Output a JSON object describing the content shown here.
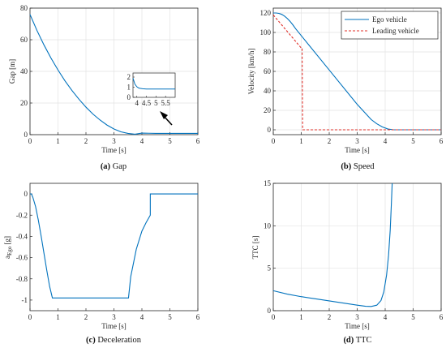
{
  "chart_data": [
    {
      "type": "line",
      "caption_letter": "(a)",
      "caption_text": " Gap",
      "xlabel": "Time [s]",
      "ylabel": "Gap [m]",
      "xlim": [
        0,
        6
      ],
      "ylim": [
        0,
        80
      ],
      "xticks": [
        0,
        1,
        2,
        3,
        4,
        5,
        6
      ],
      "yticks": [
        0,
        20,
        40,
        60,
        80
      ],
      "grid": true,
      "series": [
        {
          "color": "#0072BD",
          "style": "solid",
          "x": [
            0,
            0.25,
            0.5,
            0.75,
            1.0,
            1.25,
            1.5,
            1.75,
            2.0,
            2.25,
            2.5,
            2.75,
            3.0,
            3.25,
            3.5,
            3.75,
            4.0,
            4.25,
            4.5,
            5.0,
            5.5,
            6.0
          ],
          "y": [
            76,
            65.8,
            56.7,
            48.4,
            40.9,
            34.0,
            27.9,
            22.4,
            17.4,
            13.0,
            9.3,
            6.1,
            3.6,
            1.8,
            0.8,
            0.3,
            1.0,
            0.9,
            0.8,
            0.8,
            0.8,
            0.8
          ]
        }
      ],
      "inset": {
        "xlim": [
          3.8,
          6
        ],
        "ylim": [
          0,
          2.4
        ],
        "xticks": [
          4,
          4.5,
          5,
          5.5
        ],
        "xtick_labels": [
          "4",
          "4.5",
          "5",
          "5.5"
        ],
        "yticks": [
          0,
          1,
          2
        ],
        "x": [
          3.8,
          3.9,
          4.0,
          4.1,
          4.2,
          4.3,
          4.5,
          5.0,
          5.5,
          6.0
        ],
        "y": [
          1.9,
          1.3,
          1.05,
          0.92,
          0.88,
          0.85,
          0.82,
          0.82,
          0.82,
          0.82
        ]
      }
    },
    {
      "type": "line",
      "caption_letter": "(b)",
      "caption_text": " Speed",
      "xlabel": "Time [s]",
      "ylabel": "Velocity [km/h]",
      "xlim": [
        0,
        6
      ],
      "ylim": [
        -5,
        125
      ],
      "xticks": [
        0,
        1,
        2,
        3,
        4,
        5,
        6
      ],
      "yticks": [
        0,
        20,
        40,
        60,
        80,
        100,
        120
      ],
      "grid": true,
      "legend_position": "top-right",
      "series": [
        {
          "name": "Ego vehicle",
          "color": "#0072BD",
          "style": "solid",
          "x": [
            0,
            0.1,
            0.2,
            0.3,
            0.4,
            0.5,
            0.6,
            0.7,
            0.8,
            1.0,
            2.0,
            3.0,
            3.5,
            3.7,
            3.9,
            4.1,
            4.3,
            5.0,
            6.0
          ],
          "y": [
            120,
            120,
            119.6,
            118.6,
            116.8,
            114.4,
            111.4,
            107.8,
            103.8,
            96.7,
            61.4,
            26.1,
            10.5,
            6.2,
            2.9,
            0.8,
            0,
            0,
            0
          ]
        },
        {
          "name": "Leading vehicle",
          "color": "#E0302A",
          "style": "dashed",
          "x": [
            0,
            1.0,
            1.03,
            1.05,
            6.0
          ],
          "y": [
            118,
            84,
            84,
            0,
            0
          ]
        }
      ]
    },
    {
      "type": "line",
      "caption_letter": "(c)",
      "caption_text": " Deceleration",
      "xlabel": "Time [s]",
      "ylabel_main": "a",
      "ylabel_sub": "Ego",
      "ylabel_unit": " [g]",
      "xlim": [
        0,
        6
      ],
      "ylim": [
        -1.1,
        0.1
      ],
      "xticks": [
        0,
        1,
        2,
        3,
        4,
        5,
        6
      ],
      "yticks": [
        0,
        -0.2,
        -0.4,
        -0.6,
        -0.8,
        -1
      ],
      "grid": false,
      "series": [
        {
          "color": "#0072BD",
          "style": "solid",
          "x": [
            0,
            0.05,
            0.1,
            0.2,
            0.3,
            0.4,
            0.5,
            0.6,
            0.7,
            0.8,
            2.0,
            3.52,
            3.6,
            3.8,
            4.0,
            4.15,
            4.3,
            4.3,
            6.0
          ],
          "y": [
            0,
            0,
            -0.03,
            -0.12,
            -0.25,
            -0.4,
            -0.56,
            -0.72,
            -0.87,
            -0.98,
            -0.98,
            -0.98,
            -0.78,
            -0.52,
            -0.35,
            -0.27,
            -0.2,
            0,
            0
          ]
        }
      ]
    },
    {
      "type": "line",
      "caption_letter": "(d)",
      "caption_text": " TTC",
      "xlabel": "Time [s]",
      "ylabel": "TTC [s]",
      "xlim": [
        0,
        6
      ],
      "ylim": [
        0,
        15
      ],
      "xticks": [
        0,
        1,
        2,
        3,
        4,
        5,
        6
      ],
      "yticks": [
        0,
        5,
        10,
        15
      ],
      "grid": true,
      "series": [
        {
          "color": "#0072BD",
          "style": "solid",
          "x": [
            0,
            0.5,
            1.0,
            1.5,
            2.0,
            2.5,
            3.0,
            3.3,
            3.5,
            3.7,
            3.85,
            3.95,
            4.05,
            4.12,
            4.18,
            4.22,
            4.25
          ],
          "y": [
            2.35,
            1.95,
            1.65,
            1.4,
            1.15,
            0.9,
            0.65,
            0.52,
            0.5,
            0.65,
            1.2,
            2.2,
            4.2,
            6.5,
            9.5,
            12.5,
            15
          ]
        }
      ]
    }
  ]
}
